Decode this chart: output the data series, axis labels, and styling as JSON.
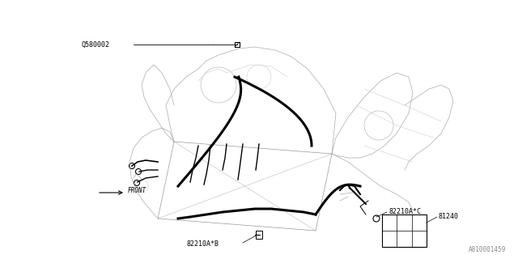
{
  "background_color": "#ffffff",
  "fig_width": 6.4,
  "fig_height": 3.2,
  "dpi": 100,
  "part_numbers_fontsize": 6.0,
  "watermark_fontsize": 5.5,
  "watermark_text": "A810001459",
  "label_Q580002": "Q580002",
  "label_FRONT": "FRONT",
  "label_82210AB": "82210A*B",
  "label_82210AC": "82210A*C",
  "label_81240": "81240",
  "body_color": "#aaaaaa",
  "harness_color": "#000000",
  "label_color": "#000000",
  "thin_lw": 0.5,
  "med_lw": 0.8,
  "thick_lw": 2.2
}
